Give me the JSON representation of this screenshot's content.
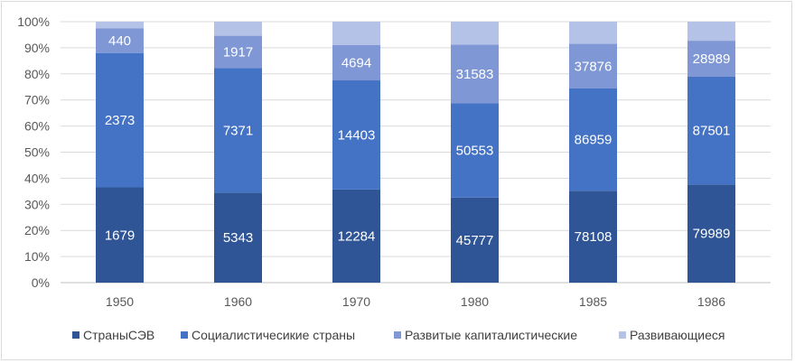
{
  "chart_data": {
    "type": "bar",
    "stacked": "percent",
    "categories": [
      "1950",
      "1960",
      "1970",
      "1980",
      "1985",
      "1986"
    ],
    "series": [
      {
        "name": "СтраныСЭВ",
        "color": "#2f5597",
        "values": [
          1679,
          5343,
          12284,
          45777,
          78108,
          79989
        ]
      },
      {
        "name": "Социалистичесикие страны",
        "color": "#4472c4",
        "values": [
          2373,
          7371,
          14403,
          50553,
          86959,
          87501
        ]
      },
      {
        "name": "Развитые капиталистические",
        "color": "#7f97d4",
        "values": [
          440,
          1917,
          4694,
          31583,
          37876,
          28989
        ]
      },
      {
        "name": "Развивающиеся",
        "color": "#b4c2e7",
        "values": [
          null,
          null,
          null,
          null,
          null,
          null
        ]
      }
    ],
    "segment_fractions": [
      [
        0.365,
        0.515,
        0.095,
        0.025
      ],
      [
        0.345,
        0.477,
        0.124,
        0.054
      ],
      [
        0.357,
        0.418,
        0.136,
        0.089
      ],
      [
        0.326,
        0.361,
        0.225,
        0.088
      ],
      [
        0.352,
        0.392,
        0.171,
        0.085
      ],
      [
        0.376,
        0.413,
        0.138,
        0.073
      ]
    ],
    "y_ticks": [
      "0%",
      "10%",
      "20%",
      "30%",
      "40%",
      "50%",
      "60%",
      "70%",
      "80%",
      "90%",
      "100%"
    ],
    "ylim": [
      0,
      100
    ],
    "grid": true,
    "legend": "bottom"
  }
}
